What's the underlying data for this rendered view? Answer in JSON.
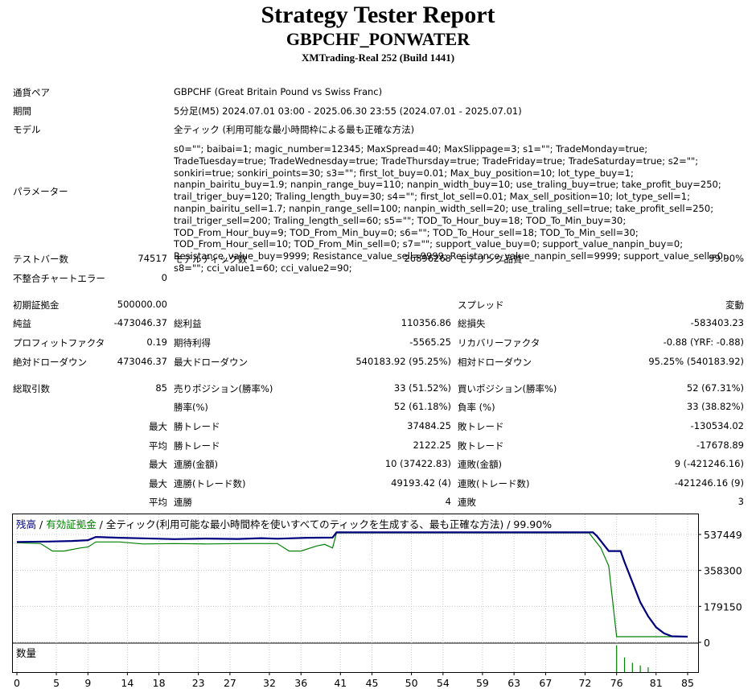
{
  "header": {
    "title": "Strategy Tester Report",
    "ea_name": "GBPCHF_PONWATER",
    "server": "XMTrading-Real 252 (Build 1441)"
  },
  "info": {
    "symbol_label": "通貨ペア",
    "symbol_value": "GBPCHF (Great Britain Pound vs Swiss Franc)",
    "period_label": "期間",
    "period_value": "5分足(M5) 2024.07.01 03:00 - 2025.06.30 23:55 (2024.07.01 - 2025.07.01)",
    "model_label": "モデル",
    "model_value": "全ティック (利用可能な最小時間枠による最も正確な方法)",
    "params_label": "パラメーター",
    "params_value": "s0=\"\"; baibai=1; magic_number=12345; MaxSpread=40; MaxSlippage=3; s1=\"\"; TradeMonday=true; TradeTuesday=true; TradeWednesday=true; TradeThursday=true; TradeFriday=true; TradeSaturday=true; s2=\"\"; sonkiri=true; sonkiri_points=30; s3=\"\"; first_lot_buy=0.01; Max_buy_position=10; lot_type_buy=1; nanpin_bairitu_buy=1.9; nanpin_range_buy=110; nanpin_width_buy=10; use_traling_buy=true; take_profit_buy=250; trail_triger_buy=120; Traling_length_buy=30; s4=\"\"; first_lot_sell=0.01; Max_sell_position=10; lot_type_sell=1; nanpin_bairitu_sell=1.7; nanpin_range_sell=100; nanpin_width_sell=20; use_traling_sell=true; take_profit_sell=250; trail_triger_sell=200; Traling_length_sell=60; s5=\"\"; TOD_To_Hour_buy=18; TOD_To_Min_buy=30; TOD_From_Hour_buy=9; TOD_From_Min_buy=0; s6=\"\"; TOD_To_Hour_sell=18; TOD_To_Min_sell=30; TOD_From_Hour_sell=10; TOD_From_Min_sell=0; s7=\"\"; support_value_buy=0; support_value_nanpin_buy=0; Resistance_value_buy=9999; Resistance_value_sell=9999; Resistance_value_nanpin_sell=9999; support_value_sell=0; s8=\"\"; cci_value1=60; cci_value2=90;"
  },
  "stats": {
    "bars_label": "テストバー数",
    "bars_value": "74517",
    "ticks_label": "モデルティック数",
    "ticks_value": "26896268",
    "quality_label": "モデリング品質",
    "quality_value": "99.90%",
    "mismatch_label": "不整合チャートエラー",
    "mismatch_value": "0",
    "deposit_label": "初期証拠金",
    "deposit_value": "500000.00",
    "spread_label": "スプレッド",
    "spread_value": "変動",
    "net_label": "純益",
    "net_value": "-473046.37",
    "gross_profit_label": "総利益",
    "gross_profit_value": "110356.86",
    "gross_loss_label": "総損失",
    "gross_loss_value": "-583403.23",
    "pf_label": "プロフィットファクタ",
    "pf_value": "0.19",
    "expected_label": "期待利得",
    "expected_value": "-5565.25",
    "recovery_label": "リカバリーファクタ",
    "recovery_value": "-0.88 (YRF: -0.88)",
    "abs_dd_label": "絶対ドローダウン",
    "abs_dd_value": "473046.37",
    "max_dd_label": "最大ドローダウン",
    "max_dd_value": "540183.92 (95.25%)",
    "rel_dd_label": "相対ドローダウン",
    "rel_dd_value": "95.25% (540183.92)",
    "trades_label": "総取引数",
    "trades_value": "85",
    "short_label": "売りポジション(勝率%)",
    "short_value": "33 (51.52%)",
    "long_label": "買いポジション(勝率%)",
    "long_value": "52 (67.31%)",
    "win_pct_label": "勝率(%)",
    "win_pct_value": "52 (61.18%)",
    "loss_pct_label": "負率 (%)",
    "loss_pct_value": "33 (38.82%)",
    "max_word": "最大",
    "avg_word": "平均",
    "largest_win_label": "勝トレード",
    "largest_win_value": "37484.25",
    "largest_loss_label": "敗トレード",
    "largest_loss_value": "-130534.02",
    "avg_win_label": "勝トレード",
    "avg_win_value": "2122.25",
    "avg_loss_label": "敗トレード",
    "avg_loss_value": "-17678.89",
    "max_cons_win_label": "連勝(金額)",
    "max_cons_win_value": "10 (37422.83)",
    "max_cons_loss_label": "連敗(金額)",
    "max_cons_loss_value": "9 (-421246.16)",
    "max_cons_profit_label": "連勝(トレード数)",
    "max_cons_profit_value": "49193.42 (4)",
    "max_cons_lossamt_label": "連敗(トレード数)",
    "max_cons_lossamt_value": "-421246.16 (9)",
    "avg_cons_win_label": "連勝",
    "avg_cons_win_value": "4",
    "avg_cons_loss_label": "連敗",
    "avg_cons_loss_value": "3"
  },
  "chart_data": {
    "type": "line",
    "legend_balance": "残高",
    "legend_sep1": " / ",
    "legend_equity": "有効証拠金",
    "legend_sep2": " / ",
    "legend_rest": "全ティック(利用可能な最小時間枠を使いすべてのティックを生成する、最も正確な方法) / 99.90%",
    "y_ticks": [
      "537449",
      "358300",
      "179150",
      "0"
    ],
    "y_tick_values": [
      537449,
      358300,
      179150,
      0
    ],
    "x_ticks": [
      "0",
      "5",
      "9",
      "14",
      "18",
      "23",
      "27",
      "32",
      "36",
      "41",
      "45",
      "50",
      "54",
      "59",
      "63",
      "67",
      "72",
      "76",
      "81",
      "85"
    ],
    "x_tick_values": [
      0,
      5,
      9,
      14,
      18,
      23,
      27,
      32,
      36,
      41,
      45,
      50,
      54,
      59,
      63,
      67,
      72,
      76,
      81,
      85
    ],
    "xlim": [
      0,
      85
    ],
    "ylim": [
      0,
      600000
    ],
    "grid": true,
    "volume_label": "数量",
    "colors": {
      "balance": "#00007f",
      "equity": "#008000",
      "volume": "#008000",
      "grid": "#c8c8c8"
    },
    "series": [
      {
        "name": "残高",
        "x": [
          0,
          4,
          7,
          9,
          10,
          13,
          16,
          20,
          24,
          28,
          31,
          33,
          37,
          40,
          40.5,
          45,
          50,
          55,
          60,
          64.5,
          65,
          72.5,
          73,
          73.5,
          75,
          75.2,
          76.5,
          77,
          78,
          79,
          80,
          81,
          82,
          83,
          85
        ],
        "y": [
          500000,
          502000,
          505000,
          509000,
          525000,
          521000,
          518000,
          514000,
          517000,
          515000,
          519000,
          516000,
          521000,
          522000,
          548000,
          548000,
          548000,
          548000,
          548000,
          548000,
          548000,
          548000,
          548000,
          530000,
          455000,
          455000,
          455000,
          400000,
          300000,
          200000,
          130000,
          75000,
          45000,
          30000,
          28000
        ]
      },
      {
        "name": "有効証拠金",
        "x": [
          0,
          3,
          4.5,
          6,
          8,
          9,
          10,
          13,
          16,
          20,
          24,
          28,
          31,
          33,
          34.5,
          36,
          38,
          39,
          40,
          40.5,
          45,
          55,
          65,
          72.5,
          73,
          74,
          75,
          76,
          77,
          85
        ],
        "y": [
          496000,
          492000,
          455000,
          455000,
          470000,
          475000,
          500000,
          500000,
          490000,
          492000,
          490000,
          492000,
          492000,
          492000,
          455000,
          455000,
          480000,
          488000,
          470000,
          545000,
          545000,
          545000,
          545000,
          545000,
          520000,
          470000,
          380000,
          28000,
          28000,
          28000
        ]
      }
    ],
    "volume": {
      "x": [
        76,
        77,
        78,
        79,
        80
      ],
      "level": [
        1.0,
        0.55,
        0.35,
        0.25,
        0.18
      ]
    }
  }
}
